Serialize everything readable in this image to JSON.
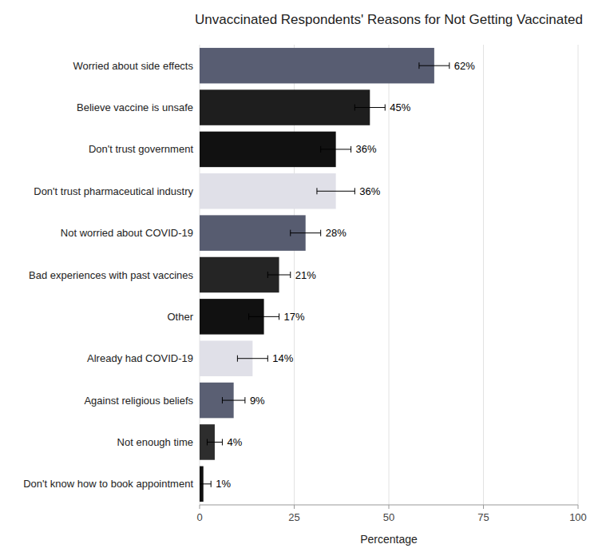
{
  "chart_data": {
    "type": "bar",
    "orientation": "horizontal",
    "title": "Unvaccinated Respondents' Reasons for Not Getting Vaccinated",
    "x_label": "Percentage",
    "categories": [
      "Don't know how to book appointment",
      "Not enough time",
      "Against religious beliefs",
      "Already had COVID-19",
      "Other",
      "Bad experiences with past vaccines",
      "Not worried about COVID-19",
      "Don't trust pharmaceutical industry",
      "Don't trust government",
      "Believe vaccine is unsafe",
      "Worried about side effects"
    ],
    "values": [
      1,
      4,
      9,
      14,
      17,
      21,
      28,
      36,
      36,
      45,
      62
    ],
    "value_labels": [
      "1%",
      "4%",
      "9%",
      "14%",
      "17%",
      "21%",
      "28%",
      "36%",
      "36%",
      "45%",
      "62%"
    ],
    "errors": [
      2,
      2,
      3,
      4,
      4,
      3,
      4,
      5,
      4,
      4,
      4
    ],
    "colors": [
      "#111111",
      "#2d2d2d",
      "#5a5f73",
      "#e0e0e8",
      "#111111",
      "#252525",
      "#575c70",
      "#e0e0e8",
      "#111111",
      "#1e1e1e",
      "#585d72"
    ],
    "xlim": [
      0,
      100
    ],
    "xticks": [
      0,
      25,
      50,
      75,
      100
    ],
    "grid": true,
    "data_labels": true
  }
}
